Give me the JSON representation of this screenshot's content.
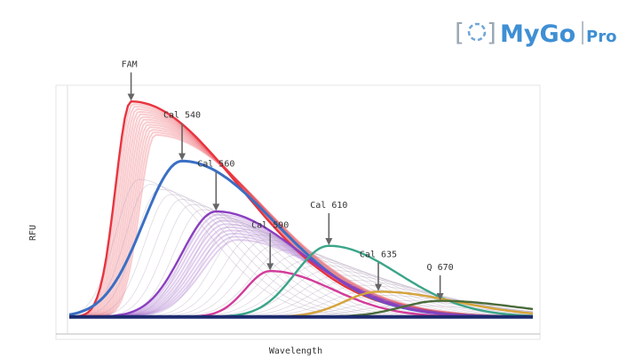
{
  "brand": {
    "name": "MyGo",
    "suffix": "Pro",
    "color": "#3f8fd4"
  },
  "chart_data": {
    "type": "line",
    "xlabel": "Wavelength",
    "ylabel": "RFU",
    "xlim": [
      480,
      780
    ],
    "ylim": [
      0,
      1.0
    ],
    "grid": false,
    "series": [
      {
        "name": "FAM",
        "color": "#e8343f",
        "peak_x": 520,
        "peak_y": 0.94,
        "sl": 10,
        "sr": 70
      },
      {
        "name": "Cal 540",
        "color": "#3a6fc4",
        "peak_x": 553,
        "peak_y": 0.68,
        "sl": 25,
        "sr": 60
      },
      {
        "name": "Cal 560",
        "color": "#8a3fc0",
        "peak_x": 575,
        "peak_y": 0.46,
        "sl": 22,
        "sr": 55
      },
      {
        "name": "Cal 590",
        "color": "#d23b9a",
        "peak_x": 610,
        "peak_y": 0.2,
        "sl": 16,
        "sr": 40
      },
      {
        "name": "Cal 610",
        "color": "#3aa589",
        "peak_x": 648,
        "peak_y": 0.31,
        "sl": 22,
        "sr": 45
      },
      {
        "name": "Cal 635",
        "color": "#d6a43a",
        "peak_x": 680,
        "peak_y": 0.11,
        "sl": 22,
        "sr": 50
      },
      {
        "name": "Q 670",
        "color": "#4a6b3a",
        "peak_x": 720,
        "peak_y": 0.07,
        "sl": 25,
        "sr": 50
      }
    ],
    "annotations": [
      {
        "text": "FAM",
        "series": 0
      },
      {
        "text": "Cal 540",
        "series": 1
      },
      {
        "text": "Cal 560",
        "series": 2
      },
      {
        "text": "Cal 590",
        "series": 3
      },
      {
        "text": "Cal 610",
        "series": 4
      },
      {
        "text": "Cal 635",
        "series": 5
      },
      {
        "text": "Q 670",
        "series": 6
      }
    ]
  }
}
